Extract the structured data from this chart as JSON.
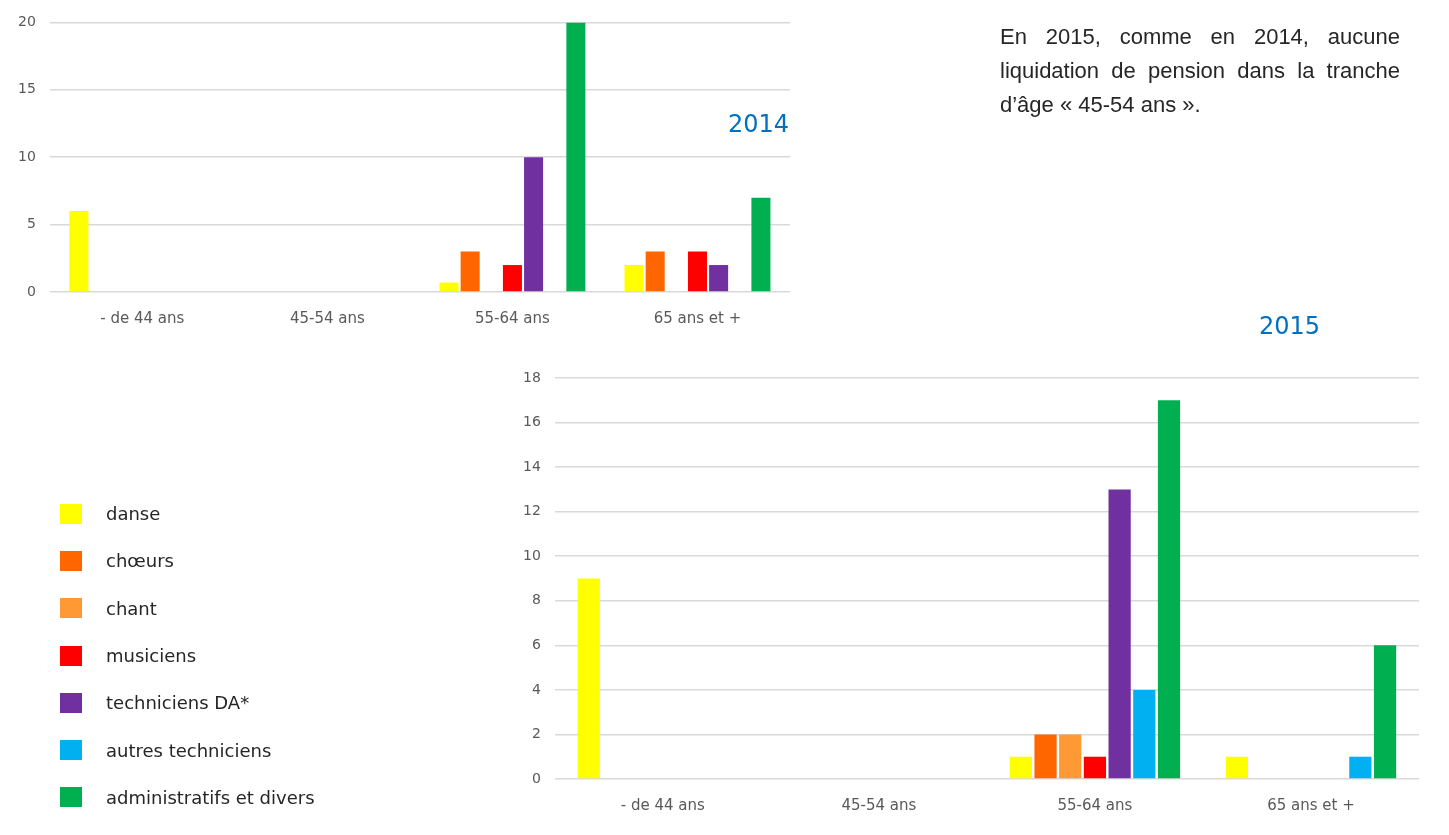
{
  "chart_data": [
    {
      "type": "bar",
      "title": "2014",
      "categories": [
        "- de 44 ans",
        "45-54 ans",
        "55-64 ans",
        "65 ans et +"
      ],
      "series": [
        {
          "color": "#ffff00",
          "values": [
            6,
            0,
            0.7,
            2
          ]
        },
        {
          "color": "#ff6600",
          "values": [
            0,
            0,
            3,
            3
          ]
        },
        {
          "color": "#ff9933",
          "values": [
            0,
            0,
            0,
            0
          ]
        },
        {
          "color": "#ff0000",
          "values": [
            0,
            0,
            2,
            3
          ]
        },
        {
          "color": "#7030a0",
          "values": [
            0,
            0,
            10,
            2
          ]
        },
        {
          "color": "#00b0f0",
          "values": [
            0,
            0,
            0,
            0
          ]
        },
        {
          "color": "#00b050",
          "values": [
            0,
            0,
            20,
            7
          ]
        }
      ],
      "ylim": [
        0,
        20
      ],
      "yticks": [
        0,
        5,
        10,
        15,
        20
      ],
      "grid": "y",
      "annotations": [
        "En 2015, comme en 2014, aucune liquidation de pension dans la tranche d’âge « 45-54 ans »."
      ]
    },
    {
      "type": "bar",
      "title": "2015",
      "categories": [
        "- de 44 ans",
        "45-54 ans",
        "55-64 ans",
        "65 ans et +"
      ],
      "series": [
        {
          "name": "danse",
          "color": "#ffff00",
          "values": [
            9,
            0,
            1,
            1
          ]
        },
        {
          "name": "chœurs",
          "color": "#ff6600",
          "values": [
            0,
            0,
            2,
            0
          ]
        },
        {
          "name": "chant",
          "color": "#ff9933",
          "values": [
            0,
            0,
            2,
            0
          ]
        },
        {
          "name": "musiciens",
          "color": "#ff0000",
          "values": [
            0,
            0,
            1,
            0
          ]
        },
        {
          "name": "techniciens DA*",
          "color": "#7030a0",
          "values": [
            0,
            0,
            13,
            0
          ]
        },
        {
          "name": "autres techniciens",
          "color": "#00b0f0",
          "values": [
            0,
            0,
            4,
            1
          ]
        },
        {
          "name": "administratifs et divers",
          "color": "#00b050",
          "values": [
            0,
            0,
            17,
            6
          ]
        }
      ],
      "ylim": [
        0,
        18
      ],
      "yticks": [
        0,
        2,
        4,
        6,
        8,
        10,
        12,
        14,
        16,
        18
      ],
      "grid": "y",
      "legend": "left"
    }
  ]
}
